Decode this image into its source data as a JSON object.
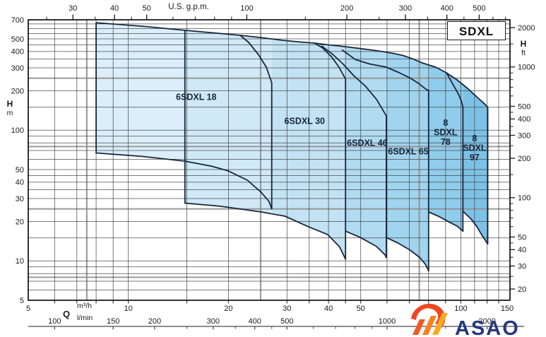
{
  "title_box": {
    "label": "SDXL"
  },
  "axis_titles": {
    "left": {
      "symbol": "H",
      "unit": "m"
    },
    "right": {
      "symbol": "H",
      "unit": "ft"
    },
    "top": {
      "label": "U.S. g.p.m."
    },
    "bottom": {
      "symbol": "Q",
      "unit_primary": "m³/h",
      "unit_secondary": "l/min"
    }
  },
  "logo": {
    "text": "ASAO",
    "text_color": "#25397b",
    "hook_color": "#ee4723",
    "stripe_colors": [
      "#ef5a24",
      "#f58220",
      "#fbaa1d"
    ]
  },
  "chart_data": {
    "type": "area",
    "title": "SDXL",
    "xlabel": "Q",
    "ylabel": "H",
    "x_scale": "log",
    "y_scale": "log",
    "x_range_m3h": [
      5,
      140
    ],
    "y_range_m": [
      5,
      700
    ],
    "x_axis": {
      "ticks_m3h": [
        5,
        10,
        20,
        30,
        40,
        50,
        100,
        150
      ],
      "ticks_lmin": [
        100,
        150,
        200,
        300,
        400,
        500,
        1000,
        2000
      ],
      "minor_lmin": [
        250,
        350,
        450,
        600,
        700,
        800,
        900,
        1500
      ],
      "ticks_usgpm": [
        30,
        40,
        50,
        100,
        200,
        300,
        400,
        500
      ],
      "minor_usgpm": [
        25,
        35,
        45,
        60,
        70,
        80,
        90,
        150,
        250,
        350,
        450,
        550,
        600
      ],
      "usgpm_per_m3h": 4.4029,
      "lmin_per_m3h": 16.667
    },
    "y_axis": {
      "ticks_m": [
        700,
        500,
        400,
        300,
        200,
        100,
        50,
        40,
        30,
        20,
        10,
        5
      ],
      "ticks_ft": [
        2000,
        1000,
        500,
        400,
        300,
        200,
        100,
        50,
        40,
        30,
        20
      ],
      "minor_ft": [
        1500,
        900,
        800,
        700,
        600,
        450,
        350,
        250,
        150,
        90,
        80,
        70,
        60,
        45,
        35,
        25
      ],
      "ft_per_m": 3.2808
    },
    "grid": {
      "x_lines": [
        6,
        7,
        8,
        9,
        10,
        15,
        20,
        30,
        35,
        40,
        45,
        50,
        60,
        70,
        80,
        90,
        100,
        110,
        120,
        130
      ],
      "y_lines": [
        6,
        7,
        8,
        9,
        10,
        15,
        20,
        30,
        35,
        40,
        45,
        50,
        60,
        70,
        80,
        90,
        100,
        150,
        200,
        300,
        350,
        400,
        450,
        500,
        550,
        600,
        650
      ],
      "x_emphasis": [
        7.5,
        25,
        75
      ],
      "y_emphasis": [
        7.5,
        25,
        75,
        250
      ]
    },
    "envelopes": [
      {
        "name": "6SDXL 18",
        "label_lines": [
          "6SDXL 18"
        ],
        "label_pos": [
          16,
          180
        ],
        "flow_m3h": [
          8,
          27
        ],
        "head_m": [
          25,
          665
        ]
      },
      {
        "name": "6SDXL 30",
        "label_lines": [
          "6SDXL 30"
        ],
        "label_pos": [
          33.9,
          118
        ],
        "flow_m3h": [
          14.8,
          45
        ],
        "head_m": [
          10.3,
          581
        ]
      },
      {
        "name": "6SDXL 46",
        "label_lines": [
          "6SDXL 46"
        ],
        "label_pos": [
          52.3,
          80
        ],
        "flow_m3h": [
          38,
          60
        ],
        "head_m": [
          10.6,
          440
        ]
      },
      {
        "name": "6SDXL 65",
        "label_lines": [
          "6SDXL 65"
        ],
        "label_pos": [
          69.5,
          69
        ],
        "flow_m3h": [
          44,
          80
        ],
        "head_m": [
          8.4,
          410
        ]
      },
      {
        "name": "8 SDXL 78",
        "label_lines": [
          "8",
          "SDXL",
          "78"
        ],
        "label_pos": [
          90,
          97
        ],
        "flow_m3h": [
          80,
          101.5
        ],
        "head_m": [
          16.9,
          304
        ]
      },
      {
        "name": "8 SDXL 97",
        "label_lines": [
          "8",
          "SDXL",
          "97"
        ],
        "label_pos": [
          110,
          73.5
        ],
        "flow_m3h": [
          101.5,
          120.5
        ],
        "head_m": [
          13.5,
          275
        ]
      }
    ],
    "zones": [
      {
        "color": "#dbeefa",
        "points": [
          [
            8,
            665
          ],
          [
            11,
            625
          ],
          [
            14.8,
            581
          ],
          [
            14.8,
            58
          ],
          [
            11,
            63
          ],
          [
            8,
            67
          ]
        ]
      },
      {
        "color": "#d0e9f7",
        "points": [
          [
            14.8,
            581
          ],
          [
            18,
            556
          ],
          [
            21.7,
            532
          ],
          [
            25,
            512
          ],
          [
            27,
            500
          ],
          [
            27,
            23.4
          ],
          [
            25.1,
            23.7
          ],
          [
            18.9,
            26.2
          ],
          [
            14.8,
            27.7
          ]
        ]
      },
      {
        "color": "#c3e2f4",
        "points": [
          [
            27,
            500
          ],
          [
            29.2,
            487
          ],
          [
            33,
            473
          ],
          [
            36.3,
            464
          ],
          [
            40,
            450
          ],
          [
            43.2,
            441
          ],
          [
            45,
            437
          ],
          [
            45,
            10.3
          ],
          [
            43.2,
            12.8
          ],
          [
            39.8,
            15.9
          ],
          [
            34.9,
            18.2
          ],
          [
            29.6,
            22
          ],
          [
            27,
            23.4
          ]
        ]
      },
      {
        "color": "#b1dbf1",
        "points": [
          [
            45,
            437
          ],
          [
            47.6,
            428
          ],
          [
            52.4,
            415
          ],
          [
            58,
            400
          ],
          [
            59.7,
            396
          ],
          [
            59.7,
            10.6
          ],
          [
            59.2,
            11.1
          ],
          [
            55.8,
            12.9
          ],
          [
            49.9,
            15.1
          ],
          [
            45,
            16.9
          ]
        ]
      },
      {
        "color": "#a1d4ee",
        "points": [
          [
            59.7,
            396
          ],
          [
            63,
            386
          ],
          [
            67,
            373
          ],
          [
            72,
            350
          ],
          [
            76.6,
            327
          ],
          [
            80,
            316
          ],
          [
            80,
            8.4
          ],
          [
            78.3,
            9.4
          ],
          [
            75.3,
            10.6
          ],
          [
            70.4,
            12.1
          ],
          [
            64.7,
            13.7
          ],
          [
            59.7,
            15.1
          ]
        ]
      },
      {
        "color": "#90cceb",
        "points": [
          [
            80,
            316
          ],
          [
            84,
            304
          ],
          [
            90.5,
            275
          ],
          [
            97.4,
            243
          ],
          [
            101.5,
            225
          ],
          [
            101.5,
            16.9
          ],
          [
            97.7,
            18.4
          ],
          [
            92.7,
            19.7
          ],
          [
            85.6,
            22
          ],
          [
            80,
            23.7
          ]
        ]
      },
      {
        "color": "#7dc2e6",
        "points": [
          [
            101.5,
            225
          ],
          [
            105,
            208
          ],
          [
            111.7,
            180
          ],
          [
            118.5,
            157
          ],
          [
            120.5,
            150
          ],
          [
            120.5,
            13.5
          ],
          [
            116,
            15.6
          ],
          [
            111.6,
            18.4
          ],
          [
            107.4,
            20.9
          ],
          [
            101.5,
            24
          ]
        ]
      }
    ],
    "outlines": [
      {
        "name": "outer-top-boundary",
        "points": [
          [
            8,
            665
          ],
          [
            11,
            625
          ],
          [
            14.8,
            581
          ],
          [
            18,
            556
          ],
          [
            21.7,
            532
          ],
          [
            25,
            512
          ],
          [
            29.2,
            487
          ],
          [
            33,
            473
          ],
          [
            36.3,
            464
          ],
          [
            40,
            450
          ],
          [
            43.2,
            441
          ],
          [
            47.6,
            428
          ],
          [
            52.4,
            415
          ],
          [
            58,
            400
          ],
          [
            63,
            386
          ],
          [
            67,
            373
          ],
          [
            72,
            350
          ],
          [
            76.6,
            327
          ],
          [
            80,
            316
          ],
          [
            84,
            304
          ],
          [
            90.5,
            275
          ],
          [
            97.4,
            243
          ],
          [
            105,
            208
          ],
          [
            111.7,
            180
          ],
          [
            118.5,
            157
          ],
          [
            120.5,
            150
          ]
        ]
      },
      {
        "name": "18-left-edge",
        "points": [
          [
            8,
            665
          ],
          [
            8,
            67
          ]
        ]
      },
      {
        "name": "18-top-drop",
        "points": [
          [
            21.7,
            532
          ],
          [
            23,
            470
          ],
          [
            24.6,
            380
          ],
          [
            26,
            304
          ],
          [
            27,
            231
          ]
        ]
      },
      {
        "name": "18-right-edge",
        "points": [
          [
            27,
            231
          ],
          [
            27,
            25
          ]
        ]
      },
      {
        "name": "18-bottom",
        "points": [
          [
            8,
            67
          ],
          [
            11,
            63
          ],
          [
            14.8,
            58
          ],
          [
            17.8,
            53
          ],
          [
            19.9,
            49
          ],
          [
            22.8,
            41.5
          ],
          [
            25.1,
            33.5
          ],
          [
            26.5,
            28.5
          ],
          [
            27,
            25
          ]
        ]
      },
      {
        "name": "30-left-edge",
        "points": [
          [
            14.8,
            581
          ],
          [
            14.8,
            27.7
          ]
        ]
      },
      {
        "name": "30-top-drop",
        "points": [
          [
            36.3,
            464
          ],
          [
            38.4,
            426
          ],
          [
            40.8,
            366
          ],
          [
            43,
            304
          ],
          [
            45,
            246
          ]
        ]
      },
      {
        "name": "30-right-edge",
        "points": [
          [
            45,
            246
          ],
          [
            45,
            10.3
          ]
        ]
      },
      {
        "name": "30-bottom",
        "points": [
          [
            14.8,
            27.7
          ],
          [
            18.9,
            26.2
          ],
          [
            25.1,
            23.7
          ],
          [
            29.6,
            22
          ],
          [
            34.9,
            18.2
          ],
          [
            39.8,
            15.9
          ],
          [
            43.2,
            12.8
          ],
          [
            45,
            10.3
          ]
        ]
      },
      {
        "name": "46-top-drop",
        "points": [
          [
            38.2,
            440
          ],
          [
            41.2,
            380
          ],
          [
            44.3,
            320
          ],
          [
            47.6,
            262
          ],
          [
            51.7,
            217
          ],
          [
            55.8,
            172
          ],
          [
            59.7,
            129
          ]
        ]
      },
      {
        "name": "46-right-edge",
        "points": [
          [
            59.7,
            129
          ],
          [
            59.7,
            10.6
          ]
        ]
      },
      {
        "name": "46-bottom",
        "points": [
          [
            45,
            16.9
          ],
          [
            49.9,
            15.1
          ],
          [
            55.8,
            12.9
          ],
          [
            59.2,
            11.1
          ],
          [
            59.7,
            10.6
          ]
        ]
      },
      {
        "name": "65-top-drop",
        "points": [
          [
            44,
            410
          ],
          [
            48.2,
            347
          ],
          [
            53,
            322
          ],
          [
            59.7,
            304
          ],
          [
            65,
            277
          ],
          [
            70.4,
            251
          ],
          [
            75,
            226
          ],
          [
            78.7,
            205
          ],
          [
            80,
            202
          ]
        ]
      },
      {
        "name": "65-right-edge",
        "points": [
          [
            80,
            202
          ],
          [
            80,
            8.4
          ]
        ]
      },
      {
        "name": "65-bottom",
        "points": [
          [
            59.7,
            15.1
          ],
          [
            64.7,
            13.7
          ],
          [
            70.4,
            12.1
          ],
          [
            75.3,
            10.6
          ],
          [
            78.3,
            9.4
          ],
          [
            80,
            8.4
          ]
        ]
      },
      {
        "name": "78-top-drop",
        "points": [
          [
            90.5,
            275
          ],
          [
            95.4,
            217
          ],
          [
            98.1,
            191
          ],
          [
            100.2,
            170
          ],
          [
            101.5,
            150
          ]
        ]
      },
      {
        "name": "78-right-edge",
        "points": [
          [
            101.5,
            150
          ],
          [
            101.5,
            16.9
          ]
        ]
      },
      {
        "name": "78-bottom",
        "points": [
          [
            80,
            23.7
          ],
          [
            85.6,
            22
          ],
          [
            92.7,
            19.7
          ],
          [
            97.7,
            18.4
          ],
          [
            101.5,
            16.9
          ]
        ]
      },
      {
        "name": "97-right-edge",
        "points": [
          [
            120.5,
            150
          ],
          [
            120.5,
            13.5
          ]
        ]
      },
      {
        "name": "97-bottom",
        "points": [
          [
            101.5,
            24
          ],
          [
            107.4,
            20.9
          ],
          [
            111.6,
            18.4
          ],
          [
            116,
            15.6
          ],
          [
            120.5,
            13.5
          ]
        ]
      }
    ]
  }
}
